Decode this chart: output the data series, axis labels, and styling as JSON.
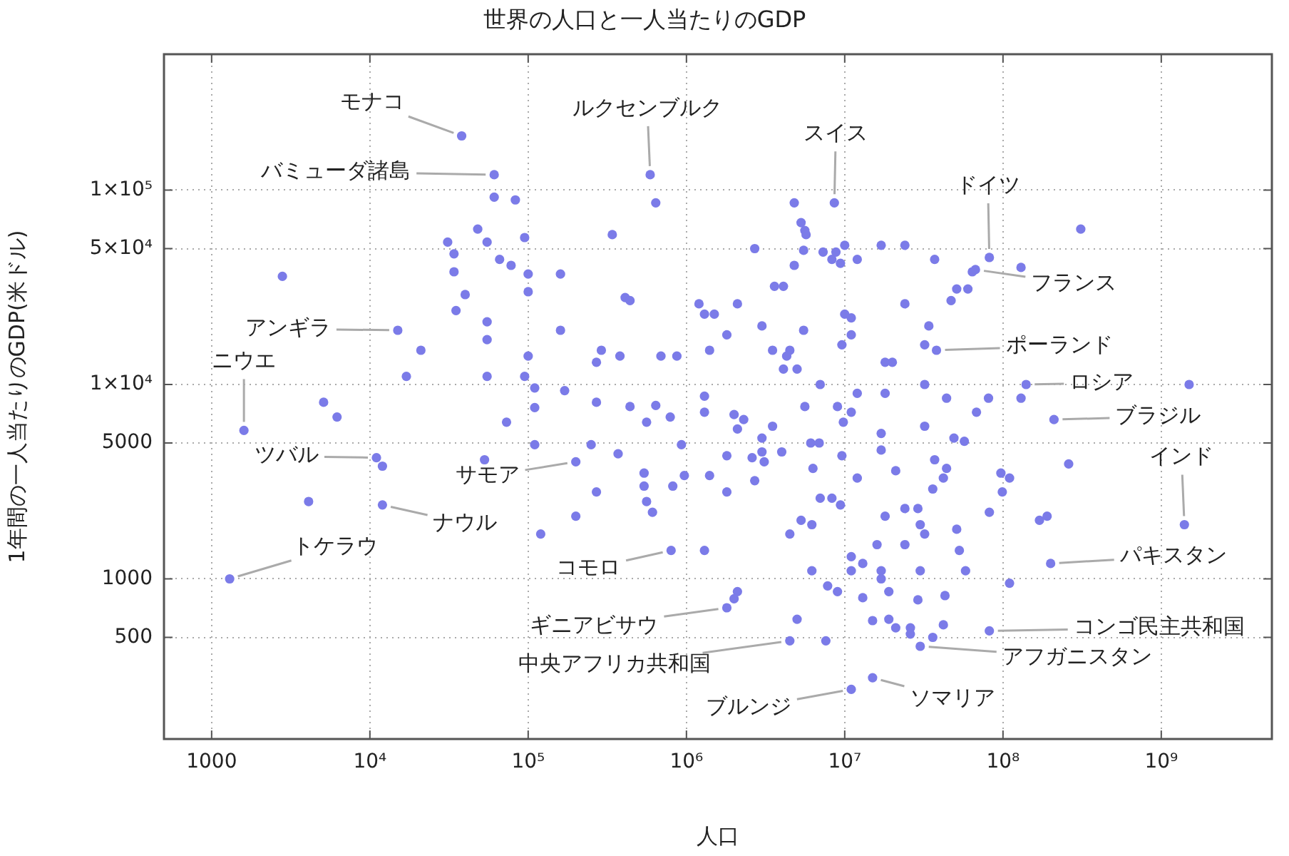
{
  "chart_data": {
    "type": "scatter",
    "title": "世界の人口と一人当たりのGDP",
    "xlabel": "人口",
    "ylabel": "1年間の一人当たりのGDP(米ドル)",
    "color": "#7b7be8",
    "marker": "circle",
    "log": "xy",
    "grid": true,
    "xlim": [
      500,
      5000000000.0
    ],
    "ylim": [
      150,
      500000
    ],
    "xticks": [
      1000,
      {
        "value": 10000,
        "label": "10⁴"
      },
      {
        "value": 100000,
        "label": "10⁵"
      },
      {
        "value": 1000000,
        "label": "10⁶"
      },
      {
        "value": 10000000,
        "label": "10⁷"
      },
      {
        "value": 100000000,
        "label": "10⁸"
      },
      {
        "value": 1000000000,
        "label": "10⁹"
      }
    ],
    "yticks": [
      500,
      1000,
      5000,
      {
        "value": 10000,
        "label": "1×10⁴"
      },
      {
        "value": 50000,
        "label": "5×10⁴"
      },
      {
        "value": 100000,
        "label": "1×10⁵"
      }
    ],
    "x": [
      38000.0,
      61000.0,
      61000.0,
      83000.0,
      590000.0,
      640000.0,
      48000.0,
      31000.0,
      55000.0,
      95000.0,
      340000.0,
      34000.0,
      66000.0,
      78000.0,
      34000.0,
      100000.0,
      160000.0,
      2800.0,
      40000.0,
      100000.0,
      410000.0,
      440000.0,
      1200000.0,
      1300000.0,
      1500000.0,
      35000.0,
      15000.0,
      55000.0,
      55000.0,
      160000.0,
      1400000.0,
      21000.0,
      100000.0,
      290000.0,
      380000.0,
      690000.0,
      870000.0,
      270000.0,
      17000.0,
      55000.0,
      95000.0,
      110000.0,
      170000.0,
      1300000.0,
      5100.0,
      270000.0,
      440000.0,
      640000.0,
      110000.0,
      1800000.0,
      1600.0,
      6200.0,
      11000.0,
      12000.0,
      4100.0,
      12000.0,
      1300.0,
      73000.0,
      110000.0,
      53000.0,
      200000.0,
      250000.0,
      370000.0,
      270000.0,
      200000.0,
      120000.0,
      560000.0,
      790000.0,
      540000.0,
      540000.0,
      560000.0,
      610000.0,
      820000.0,
      970000.0,
      930000.0,
      800000.0,
      1300000.0,
      1400000.0,
      1800000.0,
      1800000.0,
      1300000.0,
      1800000.0,
      8600000.0,
      4800000.0,
      5300000.0,
      5600000.0,
      5700000.0,
      310000000.0,
      2700000.0,
      5500000.0,
      7300000.0,
      8300000.0,
      8800000.0,
      9400000.0,
      10000000.0,
      12000000.0,
      17000000.0,
      24000000.0,
      37000000.0,
      82000000.0,
      67000000.0,
      64000000.0,
      130000000.0,
      4800000.0,
      3600000.0,
      4100000.0,
      51000000.0,
      60000000.0,
      47000000.0,
      2100000.0,
      10000000.0,
      11000000.0,
      24000000.0,
      3000000.0,
      5500000.0,
      34000000.0,
      11000000.0,
      3500000.0,
      4500000.0,
      4300000.0,
      9600000.0,
      32000000.0,
      38000000.0,
      4100000.0,
      5000000.0,
      18000000.0,
      20000000.0,
      7000000.0,
      32000000.0,
      140000000.0,
      1500000000.0,
      12000000.0,
      18000000.0,
      44000000.0,
      81000000.0,
      130000000.0,
      5600000.0,
      9000000.0,
      11000000.0,
      9800000.0,
      2000000.0,
      2300000.0,
      2100000.0,
      3500000.0,
      3000000.0,
      17000000.0,
      32000000.0,
      68000000.0,
      49000000.0,
      57000000.0,
      6100000.0,
      6900000.0,
      2600000.0,
      3000000.0,
      3100000.0,
      4000000.0,
      9600000.0,
      17000000.0,
      37000000.0,
      44000000.0,
      21000000.0,
      6300000.0,
      97000000.0,
      110000000.0,
      260000000.0,
      2700000.0,
      12000000.0,
      36000000.0,
      42000000.0,
      99000000.0,
      7000000.0,
      8300000.0,
      9400000.0,
      24000000.0,
      29000000.0,
      82000000.0,
      18000000.0,
      5300000.0,
      6200000.0,
      30000000.0,
      4500000.0,
      32000000.0,
      51000000.0,
      170000000.0,
      190000000.0,
      1400000000.0,
      16000000.0,
      24000000.0,
      53000000.0,
      11000000.0,
      11000000.0,
      13000000.0,
      6200000.0,
      17000000.0,
      17000000.0,
      30000000.0,
      58000000.0,
      200000000.0,
      110000000.0,
      7800000.0,
      9000000.0,
      2100000.0,
      2000000.0,
      13000000.0,
      19000000.0,
      29000000.0,
      43000000.0,
      5000000.0,
      4500000.0,
      7600000.0,
      15000000.0,
      19000000.0,
      21000000.0,
      26000000.0,
      26000000.0,
      42000000.0,
      36000000.0,
      30000000.0,
      82000000.0,
      15000000.0,
      11000000.0,
      210000000.0
    ],
    "values": [
      190000.0,
      120000.0,
      92000.0,
      89000.0,
      120000.0,
      86000.0,
      63000.0,
      54000.0,
      54000.0,
      57000.0,
      59000.0,
      47000.0,
      44000.0,
      41000.0,
      38000.0,
      37000.0,
      37000.0,
      36000.0,
      29000.0,
      30000.0,
      28000.0,
      27000.0,
      26000.0,
      23000.0,
      23000.0,
      24000.0,
      19000.0,
      21000.0,
      17000.0,
      19000.0,
      15000.0,
      15000.0,
      14000.0,
      15000.0,
      14000.0,
      14000.0,
      14000.0,
      13000.0,
      11000.0,
      11000.0,
      11000.0,
      9600,
      9300,
      8700,
      8100,
      8100,
      7700,
      7800,
      7600,
      18000.0,
      5800,
      6800,
      4200,
      3800,
      2500,
      2400,
      1000,
      6400,
      4900,
      4100,
      4000,
      4900,
      4400,
      2800,
      2100,
      1700,
      6400,
      6800,
      3500,
      3000,
      2500,
      2200,
      3000,
      3400,
      4900,
      1400,
      1400,
      3400,
      2800,
      4300,
      7200,
      710,
      86000.0,
      86000.0,
      68000.0,
      62000.0,
      59000.0,
      63000.0,
      50000.0,
      49000.0,
      48000.0,
      44000.0,
      48000.0,
      42000.0,
      52000.0,
      44000.0,
      52000.0,
      52000.0,
      44000.0,
      45000.0,
      39000.0,
      38000.0,
      40000.0,
      41000.0,
      32000.0,
      32000.0,
      31000.0,
      31000.0,
      27000.0,
      26000.0,
      23000.0,
      22000.0,
      26000.0,
      20000.0,
      19000.0,
      20000.0,
      18000.0,
      15000.0,
      15000.0,
      14000.0,
      16000.0,
      16000.0,
      15000.0,
      12000.0,
      12000.0,
      13000.0,
      13000.0,
      10000.0,
      10000.0,
      10000.0,
      10000.0,
      9000,
      9000,
      8500,
      8500,
      8500,
      7700,
      7700,
      7200,
      6400,
      7000,
      6600,
      5900,
      6100,
      5300,
      5600,
      6100,
      7200,
      5300,
      5100,
      5000,
      5000,
      4200,
      4500,
      4000,
      4500,
      4300,
      4600,
      4100,
      3700,
      3600,
      3700,
      3500,
      3300,
      3900,
      3200,
      3300,
      2900,
      3300,
      2800,
      2600,
      2600,
      2400,
      2300,
      2300,
      2200,
      2100,
      2000,
      1900,
      1900,
      1700,
      1700,
      1800,
      2000,
      2100,
      1900,
      1500,
      1500,
      1400,
      1300,
      1100,
      1200,
      1100,
      1100,
      1000,
      1100,
      1100,
      1200,
      950,
      920,
      860,
      860,
      790,
      800,
      860,
      780,
      820,
      620,
      480,
      480,
      610,
      620,
      560,
      560,
      520,
      580,
      500,
      450,
      540,
      310,
      270,
      6600
    ],
    "annotations": [
      {
        "text": "モナコ",
        "x": 38000.0,
        "y": 190000.0
      },
      {
        "text": "バミューダ諸島",
        "x": 61000.0,
        "y": 120000.0
      },
      {
        "text": "ルクセンブルク",
        "x": 590000.0,
        "y": 120000.0
      },
      {
        "text": "スイス",
        "x": 8600000.0,
        "y": 86000.0
      },
      {
        "text": "ドイツ",
        "x": 82000000.0,
        "y": 45000.0
      },
      {
        "text": "フランス",
        "x": 67000000.0,
        "y": 39000.0
      },
      {
        "text": "ポーランド",
        "x": 38000000.0,
        "y": 15000.0
      },
      {
        "text": "ロシア",
        "x": 140000000.0,
        "y": 10000.0
      },
      {
        "text": "ブラジル",
        "x": 210000000.0,
        "y": 6600
      },
      {
        "text": "インド",
        "x": 1400000000.0,
        "y": 1900
      },
      {
        "text": "パキスタン",
        "x": 200000000.0,
        "y": 1200
      },
      {
        "text": "コンゴ民主共和国",
        "x": 82000000.0,
        "y": 540
      },
      {
        "text": "アフガニスタン",
        "x": 30000000.0,
        "y": 450
      },
      {
        "text": "ソマリア",
        "x": 15000000.0,
        "y": 310
      },
      {
        "text": "ブルンジ",
        "x": 11000000.0,
        "y": 270
      },
      {
        "text": "中央アフリカ共和国",
        "x": 4500000.0,
        "y": 480
      },
      {
        "text": "ギニアビサウ",
        "x": 1800000.0,
        "y": 710
      },
      {
        "text": "コモロ",
        "x": 800000.0,
        "y": 1400
      },
      {
        "text": "サモア",
        "x": 200000.0,
        "y": 4000
      },
      {
        "text": "ナウル",
        "x": 12000.0,
        "y": 2400
      },
      {
        "text": "トケラウ",
        "x": 1300.0,
        "y": 1000
      },
      {
        "text": "ツバル",
        "x": 11000.0,
        "y": 4200
      },
      {
        "text": "ニウエ",
        "x": 1600.0,
        "y": 5800
      },
      {
        "text": "アンギラ",
        "x": 15000.0,
        "y": 19000.0
      }
    ]
  }
}
